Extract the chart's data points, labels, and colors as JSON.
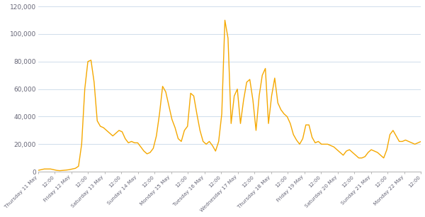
{
  "line_color": "#F5A800",
  "background_color": "#ffffff",
  "grid_color": "#c8d8e8",
  "ylim": [
    0,
    120000
  ],
  "yticks": [
    0,
    20000,
    40000,
    60000,
    80000,
    100000,
    120000
  ],
  "tick_labels": [
    "Thursday 11 May",
    "12:00",
    "Friday 12 May",
    "12:00",
    "Saturday 13 May",
    "12:00",
    "Sunday 14 May",
    "12:00",
    "Monday 15 May",
    "12:00",
    "Tuesday 16 May",
    "12:00",
    "Wednesday 17 May",
    "12:00",
    "Thursday 18 May",
    "12:00",
    "Friday 19 May",
    "12:00",
    "Saturday 20 May",
    "12:00",
    "Sunday 21 May",
    "12:00",
    "Monday 22 May",
    "12:00"
  ],
  "values": [
    1000,
    1500,
    2000,
    2000,
    2000,
    1500,
    1000,
    800,
    1000,
    1200,
    1500,
    2000,
    2500,
    4000,
    20000,
    60000,
    80000,
    81000,
    65000,
    37000,
    33000,
    32000,
    30000,
    28000,
    26000,
    28000,
    30000,
    29000,
    24000,
    21000,
    22000,
    21000,
    21000,
    18000,
    15000,
    13000,
    14000,
    17000,
    26000,
    42000,
    62000,
    58000,
    48000,
    38000,
    32000,
    24000,
    22000,
    30000,
    33000,
    57000,
    55000,
    42000,
    30000,
    22000,
    20000,
    22000,
    19000,
    15000,
    22000,
    42000,
    110000,
    97000,
    35000,
    55000,
    60000,
    35000,
    52000,
    65000,
    67000,
    52000,
    30000,
    55000,
    70000,
    75000,
    35000,
    55000,
    68000,
    50000,
    45000,
    42000,
    40000,
    35000,
    27000,
    23000,
    20000,
    24000,
    34000,
    34000,
    25000,
    21000,
    22000,
    20000,
    20000,
    20000,
    19000,
    18000,
    16000,
    14000,
    12000,
    15000,
    16000,
    14000,
    12000,
    10000,
    10000,
    11000,
    14000,
    16000,
    15000,
    14000,
    12000,
    10000,
    16000,
    27000,
    30000,
    26000,
    22000,
    22000,
    23000,
    22000,
    21000,
    20000,
    21000,
    22000
  ]
}
